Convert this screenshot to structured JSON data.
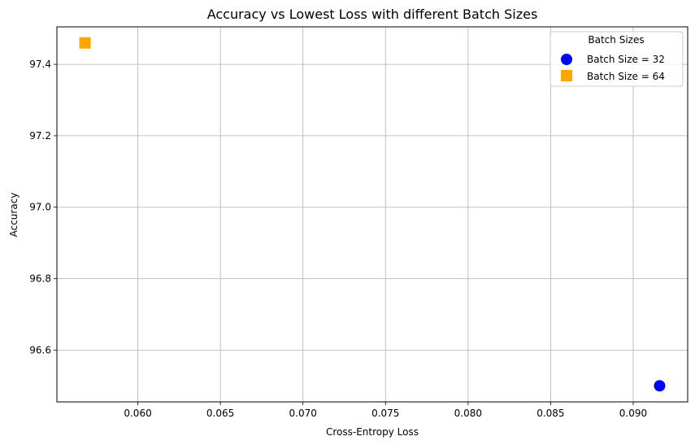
{
  "chart_data": {
    "type": "scatter",
    "title": "Accuracy vs Lowest Loss with different Batch Sizes",
    "xlabel": "Cross-Entropy Loss",
    "ylabel": "Accuracy",
    "xlim": [
      0.0551,
      0.0933
    ],
    "ylim": [
      96.455,
      97.505
    ],
    "xticks": [
      0.06,
      0.065,
      0.07,
      0.075,
      0.08,
      0.085,
      0.09
    ],
    "xtick_labels": [
      "0.060",
      "0.065",
      "0.070",
      "0.075",
      "0.080",
      "0.085",
      "0.090"
    ],
    "yticks": [
      96.6,
      96.8,
      97.0,
      97.2,
      97.4
    ],
    "ytick_labels": [
      "96.6",
      "96.8",
      "97.0",
      "97.2",
      "97.4"
    ],
    "grid": true,
    "legend": {
      "title": "Batch Sizes",
      "placement": "top-right"
    },
    "series": [
      {
        "name": "Batch Size = 32",
        "marker": "circle",
        "color": "#0000ff",
        "points": [
          {
            "x": 0.0916,
            "y": 96.5
          }
        ]
      },
      {
        "name": "Batch Size = 64",
        "marker": "square",
        "color": "#ffa500",
        "points": [
          {
            "x": 0.0568,
            "y": 97.46
          }
        ]
      }
    ]
  }
}
